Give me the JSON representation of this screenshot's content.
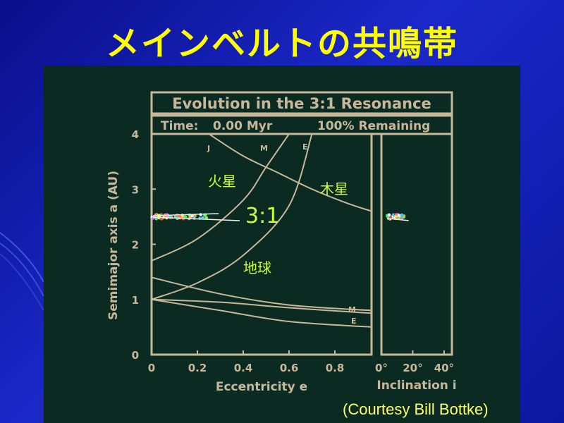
{
  "slide": {
    "title": "メインベルトの共鳴帯",
    "caption": "(Courtesy Bill Bottke)"
  },
  "colors": {
    "title": "#ffff00",
    "annotation": "#ccff33",
    "figure_text": "#c8b89a",
    "figure_bg": "#0b2a22"
  },
  "figure": {
    "title": "Evolution in the 3:1 Resonance",
    "status_time_label": "Time:",
    "status_time_value": "0.00 Myr",
    "status_remaining": "100% Remaining",
    "annotations": {
      "mars_jp": "火星",
      "jupiter_jp": "木星",
      "resonance": "3:1",
      "earth_jp": "地球"
    },
    "curve_labels": {
      "J": "J",
      "M_top": "M",
      "E_top": "E",
      "M_bottom": "M",
      "E_bottom": "E"
    }
  },
  "chart_data": [
    {
      "type": "line",
      "title": "Evolution in the 3:1 Resonance",
      "xlabel": "Eccentricity e",
      "ylabel": "Semimajor axis a (AU)",
      "xlim": [
        0,
        0.96
      ],
      "ylim": [
        0,
        4
      ],
      "xticks": [
        "0",
        "0.2",
        "0.4",
        "0.6",
        "0.8"
      ],
      "xtick_values": [
        0,
        0.2,
        0.4,
        0.6,
        0.8
      ],
      "yticks": [
        "0",
        "1",
        "2",
        "3",
        "4"
      ],
      "ytick_values": [
        0,
        1,
        2,
        3,
        4
      ],
      "series": [
        {
          "name": "J",
          "x": [
            0.25,
            0.4,
            0.55,
            0.7,
            0.85,
            0.96
          ],
          "y": [
            4.0,
            3.6,
            3.3,
            3.0,
            2.75,
            2.6
          ]
        },
        {
          "name": "M",
          "x": [
            0,
            0.2,
            0.4,
            0.5,
            0.6
          ],
          "y": [
            1.7,
            2.1,
            2.8,
            3.4,
            4.0
          ]
        },
        {
          "name": "E",
          "x": [
            0,
            0.2,
            0.4,
            0.6,
            0.7
          ],
          "y": [
            1.0,
            1.3,
            1.8,
            2.7,
            4.0
          ]
        },
        {
          "name": "M",
          "x": [
            0,
            0.3,
            0.6,
            0.96
          ],
          "y": [
            1.4,
            1.1,
            0.9,
            0.8
          ]
        },
        {
          "name": "E",
          "x": [
            0,
            0.3,
            0.6,
            0.96
          ],
          "y": [
            1.0,
            0.8,
            0.6,
            0.5
          ]
        },
        {
          "name": "",
          "x": [
            0,
            0.3,
            0.6,
            0.96
          ],
          "y": [
            1.0,
            0.95,
            0.85,
            0.75
          ]
        }
      ],
      "particles": {
        "e_range": [
          0,
          0.25
        ],
        "a": 2.5
      }
    },
    {
      "type": "scatter",
      "xlabel": "Inclination i",
      "xlim": [
        0,
        45
      ],
      "xticks": [
        "0°",
        "20°",
        "40°"
      ],
      "xtick_values": [
        0,
        20,
        40
      ],
      "ylim": [
        0,
        4
      ],
      "particles": {
        "i_range": [
          0,
          12
        ],
        "a": 2.5
      }
    }
  ]
}
